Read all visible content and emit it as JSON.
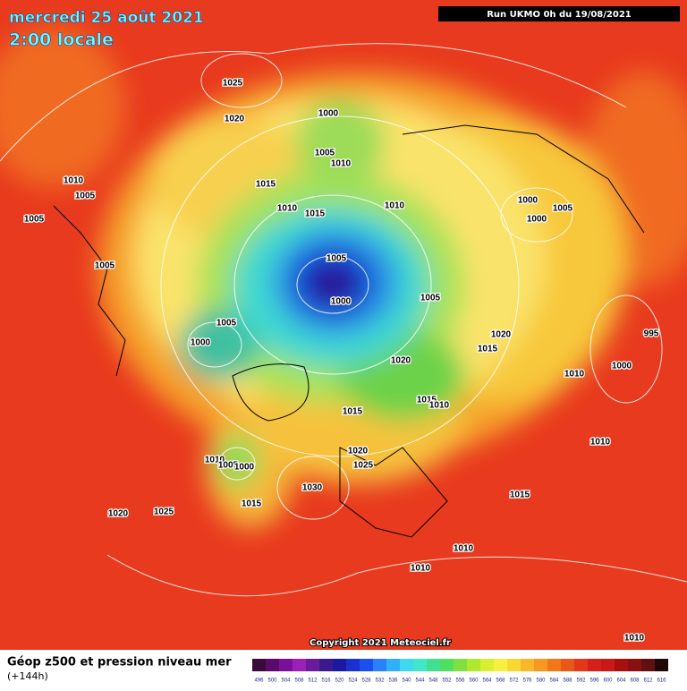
{
  "header": {
    "date": "mercredi 25 août 2021",
    "time": "2:00 locale",
    "run": "Run UKMO 0h du 19/08/2021"
  },
  "footer": {
    "copyright": "Copyright 2021 Meteociel.fr",
    "legend_title": "Géop z500 et pression niveau mer",
    "legend_subtitle": "(+144h)",
    "colorbar_labels": [
      "496",
      "500",
      "504",
      "508",
      "512",
      "516",
      "520",
      "524",
      "528",
      "532",
      "536",
      "540",
      "544",
      "548",
      "552",
      "556",
      "560",
      "564",
      "568",
      "572",
      "576",
      "580",
      "584",
      "588",
      "592",
      "596",
      "600",
      "604",
      "608",
      "612",
      "616"
    ]
  },
  "pressure_labels": [
    "1025",
    "1020",
    "1000",
    "1005",
    "1010",
    "1015",
    "1010",
    "1005",
    "1005",
    "1010",
    "1015",
    "1010",
    "1000",
    "1000",
    "1005",
    "1005",
    "1005",
    "1000",
    "1005",
    "1005",
    "1000",
    "1020",
    "1015",
    "995",
    "1000",
    "1010",
    "1020",
    "1015",
    "1010",
    "1015",
    "1010",
    "1005",
    "1000",
    "1020",
    "1025",
    "1030",
    "1015",
    "1010",
    "1015",
    "1020",
    "1025",
    "1010",
    "1010",
    "1010"
  ]
}
